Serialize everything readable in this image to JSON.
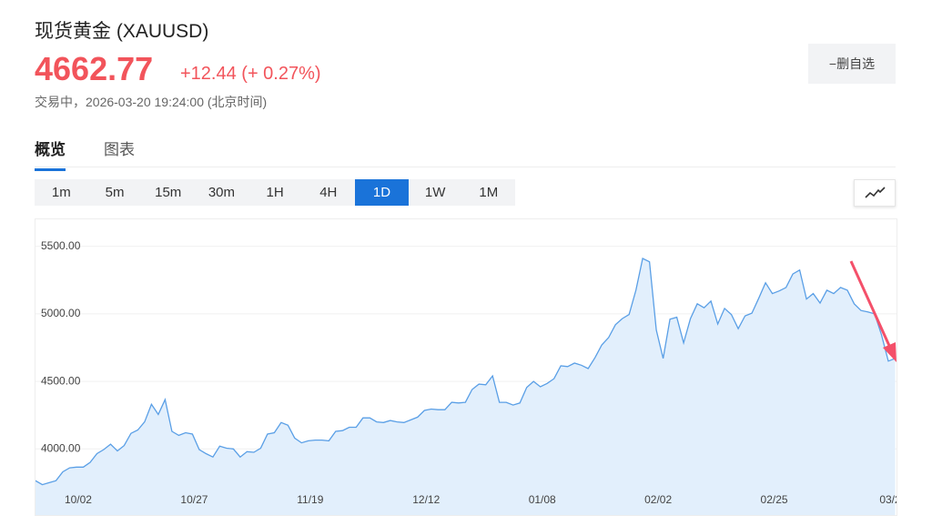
{
  "header": {
    "title": "现货黄金 (XAUUSD)",
    "price": "4662.77",
    "change": "+12.44 (+ 0.27%)",
    "status": "交易中，2026-03-20 19:24:00 (北京时间)",
    "button": "−删自选"
  },
  "tabs": [
    {
      "label": "概览",
      "active": true
    },
    {
      "label": "图表",
      "active": false
    }
  ],
  "intervals": [
    {
      "label": "1m",
      "active": false
    },
    {
      "label": "5m",
      "active": false
    },
    {
      "label": "15m",
      "active": false
    },
    {
      "label": "30m",
      "active": false
    },
    {
      "label": "1H",
      "active": false
    },
    {
      "label": "4H",
      "active": false
    },
    {
      "label": "1D",
      "active": true
    },
    {
      "label": "1W",
      "active": false
    },
    {
      "label": "1M",
      "active": false
    }
  ],
  "chart_data": {
    "type": "area",
    "color": "#5a9fe6",
    "fill": "#e2effc",
    "grid": true,
    "categories": [
      null,
      null,
      null,
      null,
      null,
      null,
      "10/02",
      null,
      null,
      null,
      null,
      null,
      null,
      null,
      null,
      null,
      null,
      null,
      null,
      null,
      null,
      null,
      null,
      "10/27",
      null,
      null,
      null,
      null,
      null,
      null,
      null,
      null,
      null,
      null,
      null,
      null,
      null,
      null,
      null,
      null,
      "11/19",
      null,
      null,
      null,
      null,
      null,
      null,
      null,
      null,
      null,
      null,
      null,
      null,
      null,
      null,
      null,
      null,
      "12/12",
      null,
      null,
      null,
      null,
      null,
      null,
      null,
      null,
      null,
      null,
      null,
      null,
      null,
      null,
      null,
      null,
      "01/08",
      null,
      null,
      null,
      null,
      null,
      null,
      null,
      null,
      null,
      null,
      null,
      null,
      null,
      null,
      null,
      null,
      "02/02",
      null,
      null,
      null,
      null,
      null,
      null,
      null,
      null,
      null,
      null,
      null,
      null,
      null,
      null,
      null,
      null,
      "02/25",
      null,
      null,
      null,
      null,
      null,
      null,
      null,
      null,
      null,
      null,
      null,
      null,
      null,
      null,
      null,
      null,
      "03/2",
      null
    ],
    "values": [
      3765,
      3735,
      3750,
      3765,
      3830,
      3860,
      3865,
      3865,
      3900,
      3965,
      3995,
      4035,
      3985,
      4025,
      4115,
      4140,
      4200,
      4330,
      4255,
      4365,
      4130,
      4100,
      4120,
      4110,
      3995,
      3965,
      3940,
      4020,
      4005,
      4000,
      3940,
      3980,
      3975,
      4005,
      4110,
      4120,
      4195,
      4175,
      4080,
      4045,
      4060,
      4065,
      4065,
      4060,
      4130,
      4135,
      4160,
      4160,
      4230,
      4230,
      4200,
      4195,
      4210,
      4200,
      4195,
      4215,
      4235,
      4285,
      4295,
      4290,
      4290,
      4345,
      4340,
      4345,
      4440,
      4480,
      4475,
      4540,
      4345,
      4345,
      4325,
      4340,
      4455,
      4500,
      4460,
      4485,
      4520,
      4615,
      4610,
      4635,
      4620,
      4595,
      4675,
      4770,
      4825,
      4920,
      4965,
      4995,
      5175,
      5410,
      5385,
      4880,
      4670,
      4960,
      4975,
      4785,
      4965,
      5075,
      5045,
      5095,
      4925,
      5040,
      4995,
      4890,
      4985,
      5005,
      5115,
      5230,
      5150,
      5170,
      5195,
      5295,
      5325,
      5110,
      5150,
      5080,
      5175,
      5150,
      5195,
      5175,
      5075,
      5025,
      5015,
      5000,
      4845,
      4650,
      4670
    ],
    "ylim": [
      3510,
      5700
    ],
    "yticks": [
      {
        "value": 4000,
        "label": "4000.00"
      },
      {
        "value": 4500,
        "label": "4500.00"
      },
      {
        "value": 5000,
        "label": "5000.00"
      },
      {
        "value": 5500,
        "label": "5500.00"
      }
    ]
  }
}
